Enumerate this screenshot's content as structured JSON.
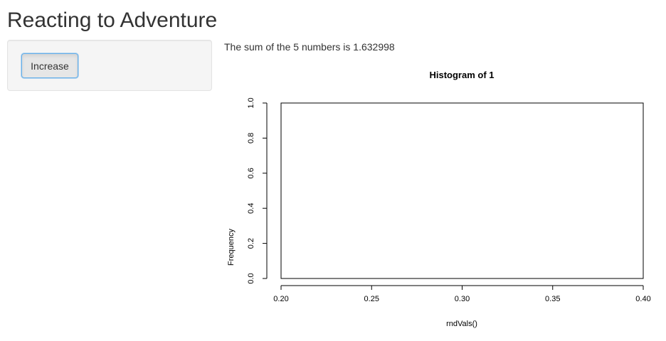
{
  "page": {
    "title": "Reacting to Adventure"
  },
  "sidebar": {
    "increase_button_label": "Increase"
  },
  "main": {
    "sum_text": "The sum of the 5 numbers is 1.632998"
  },
  "chart_data": {
    "type": "bar",
    "title": "Histogram of 1",
    "xlabel": "rndVals()",
    "ylabel": "Frequency",
    "xlim": [
      0.2,
      0.4
    ],
    "ylim": [
      0.0,
      1.0
    ],
    "x_ticks": [
      "0.20",
      "0.25",
      "0.30",
      "0.35",
      "0.40"
    ],
    "y_ticks": [
      "0.0",
      "0.2",
      "0.4",
      "0.6",
      "0.8",
      "1.0"
    ],
    "categories": [],
    "values": [],
    "grid": false,
    "legend": "none"
  }
}
